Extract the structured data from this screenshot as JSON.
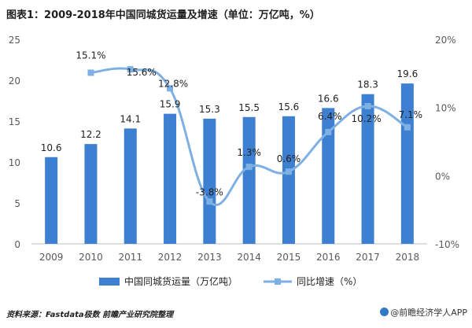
{
  "title": "图表1：2009-2018年中国同城货运量及增速（单位：万亿吨，%）",
  "source": "资料来源：Fastdata极数 前瞻产业研究院整理",
  "brand": "@前瞻经济学人APP",
  "colors": {
    "bar": "#3d7fd0",
    "line": "#7fb0e4",
    "text": "#222222"
  },
  "chart_data": {
    "type": "bar",
    "categories": [
      "2009",
      "2010",
      "2011",
      "2012",
      "2013",
      "2014",
      "2015",
      "2016",
      "2017",
      "2018"
    ],
    "series": [
      {
        "name": "中国同城货运量（万亿吨）",
        "type": "bar",
        "axis": "left",
        "values": [
          10.6,
          12.2,
          14.1,
          15.9,
          15.3,
          15.5,
          15.6,
          16.6,
          18.3,
          19.6
        ]
      },
      {
        "name": "同比增速（%）",
        "type": "line",
        "axis": "right",
        "values": [
          null,
          15.1,
          15.6,
          12.8,
          -3.8,
          1.3,
          0.6,
          6.4,
          10.2,
          7.1
        ]
      }
    ],
    "bar_labels": [
      "10.6",
      "12.2",
      "14.1",
      "15.9",
      "15.3",
      "15.5",
      "15.6",
      "16.6",
      "18.3",
      "19.6"
    ],
    "line_labels": [
      null,
      "15.1%",
      "15.6%",
      "12.8%",
      "-3.8%",
      "1.3%",
      "0.6%",
      "6.4%",
      "10.2%",
      "7.1%"
    ],
    "y_left": {
      "ticks": [
        "0",
        "5",
        "10",
        "15",
        "20",
        "25"
      ],
      "ylim": [
        0,
        25
      ]
    },
    "y_right": {
      "ticks": [
        "-10%",
        "0%",
        "10%",
        "20%"
      ],
      "ylim": [
        -10,
        20
      ]
    },
    "grid": false,
    "legend": "bottom"
  }
}
